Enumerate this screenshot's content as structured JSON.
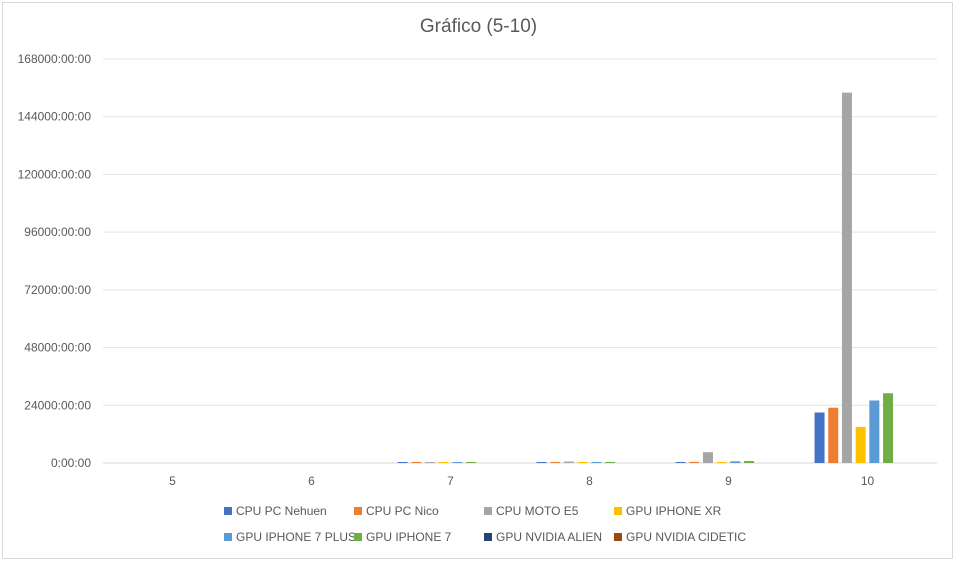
{
  "chart_data": {
    "type": "bar",
    "title": "Gráfico (5-10)",
    "xlabel": "",
    "ylabel": "",
    "categories": [
      "5",
      "6",
      "7",
      "8",
      "9",
      "10"
    ],
    "ylim": [
      0,
      168000
    ],
    "y_unit": "hours",
    "yticks": [
      0,
      24000,
      48000,
      72000,
      96000,
      120000,
      144000,
      168000
    ],
    "ytick_labels": [
      "0:00:00",
      "24000:00:00",
      "48000:00:00",
      "72000:00:00",
      "96000:00:00",
      "120000:00:00",
      "144000:00:00",
      "168000:00:00"
    ],
    "grid": true,
    "legend_position": "bottom",
    "series": [
      {
        "name": "CPU PC Nehuen",
        "color": "#4472c4",
        "values": [
          0,
          0,
          2,
          30,
          400,
          21000
        ]
      },
      {
        "name": "CPU PC Nico",
        "color": "#ed7d31",
        "values": [
          0,
          0,
          2,
          30,
          450,
          23000
        ]
      },
      {
        "name": "CPU MOTO E5",
        "color": "#a5a5a5",
        "values": [
          0,
          0,
          15,
          600,
          4500,
          154000
        ]
      },
      {
        "name": "GPU IPHONE XR",
        "color": "#ffc000",
        "values": [
          0,
          0,
          1,
          10,
          200,
          15000
        ]
      },
      {
        "name": "GPU IPHONE 7 PLUS",
        "color": "#5b9bd5",
        "values": [
          0,
          0,
          1,
          20,
          700,
          26000
        ]
      },
      {
        "name": "GPU IPHONE 7",
        "color": "#70ad47",
        "values": [
          0,
          0,
          1,
          20,
          800,
          29000
        ]
      },
      {
        "name": "GPU NVIDIA ALIEN",
        "color": "#264478",
        "values": [
          0,
          0,
          0,
          0,
          0,
          0
        ]
      },
      {
        "name": "GPU NVIDIA CIDETIC",
        "color": "#9e480e",
        "values": [
          0,
          0,
          0,
          0,
          0,
          0
        ]
      }
    ]
  }
}
